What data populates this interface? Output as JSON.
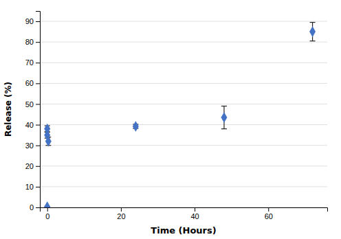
{
  "chart_data": {
    "type": "scatter",
    "xlabel": "Time (Hours)",
    "ylabel": "Release (%)",
    "x": [
      0,
      0,
      0,
      0.3,
      24,
      48,
      72
    ],
    "values": [
      0.3,
      38,
      35,
      32,
      39.2,
      43.5,
      85
    ],
    "error_low": [
      0,
      1.5,
      1.5,
      2.0,
      1.0,
      5.5,
      4.5
    ],
    "error_high": [
      0,
      1.5,
      1.5,
      2.0,
      1.0,
      5.5,
      4.5
    ],
    "color": "#4472C4",
    "marker": "diamond",
    "xlim": [
      -2,
      76
    ],
    "ylim": [
      0,
      95
    ],
    "xticks": [
      0,
      20,
      40,
      60
    ],
    "yticks": [
      0,
      10,
      20,
      30,
      40,
      50,
      60,
      70,
      80,
      90
    ],
    "grid": true
  }
}
